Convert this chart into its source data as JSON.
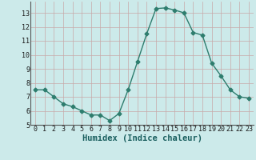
{
  "xlabel": "Humidex (Indice chaleur)",
  "x": [
    0,
    1,
    2,
    3,
    4,
    5,
    6,
    7,
    8,
    9,
    10,
    11,
    12,
    13,
    14,
    15,
    16,
    17,
    18,
    19,
    20,
    21,
    22,
    23
  ],
  "y": [
    7.5,
    7.5,
    7.0,
    6.5,
    6.3,
    6.0,
    5.7,
    5.7,
    5.3,
    5.8,
    7.5,
    9.5,
    11.5,
    13.3,
    13.35,
    13.2,
    13.0,
    11.6,
    11.4,
    9.4,
    8.5,
    7.5,
    7.0,
    6.9
  ],
  "line_color": "#2e7d6e",
  "marker": "D",
  "markersize": 2.5,
  "bg_color": "#cceaea",
  "grid_color_major": "#c8a8a8",
  "grid_color_minor": "#dcc8c8",
  "ylim": [
    5,
    13.8
  ],
  "xlim": [
    -0.5,
    23.5
  ],
  "yticks": [
    5,
    6,
    7,
    8,
    9,
    10,
    11,
    12,
    13
  ],
  "xticks": [
    0,
    1,
    2,
    3,
    4,
    5,
    6,
    7,
    8,
    9,
    10,
    11,
    12,
    13,
    14,
    15,
    16,
    17,
    18,
    19,
    20,
    21,
    22,
    23
  ],
  "tick_fontsize": 6,
  "label_fontsize": 7.5,
  "linewidth": 1.0
}
